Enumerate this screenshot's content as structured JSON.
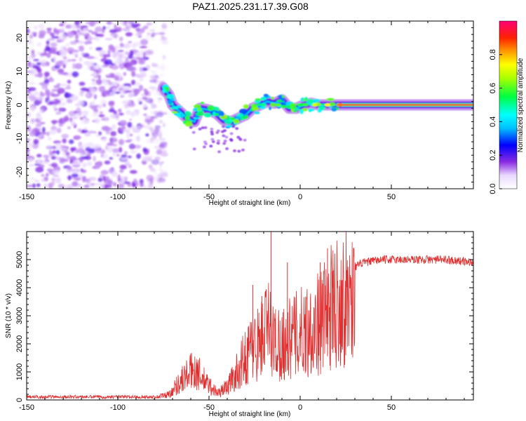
{
  "title": "PAZ1.2025.231.17.39.G08",
  "chart_data": [
    {
      "type": "heatmap",
      "xlabel": "Height of straight line (km)",
      "ylabel": "Frequency (Hz)",
      "xlim": [
        -150,
        95
      ],
      "ylim": [
        -25,
        25
      ],
      "xticks": [
        "-150",
        "-100",
        "-50",
        "0",
        "50"
      ],
      "xtick_values": [
        -150,
        -100,
        -50,
        0,
        50
      ],
      "yticks": [
        "20",
        "10",
        "0",
        "-10",
        "-20"
      ],
      "ytick_values": [
        20,
        10,
        0,
        -10,
        -20
      ],
      "colorbar": {
        "label": "Normalized spectral amplitude",
        "range": [
          0,
          1
        ],
        "ticks": [
          "0.0",
          "0.2",
          "0.4",
          "0.6",
          "0.8"
        ],
        "tick_values": [
          0,
          0.2,
          0.4,
          0.6,
          0.8
        ]
      },
      "noise_region_x": [
        -150,
        -78
      ],
      "noise_amplitude": 0.12,
      "track": [
        {
          "x": -75,
          "f": 5
        },
        {
          "x": -72,
          "f": 3
        },
        {
          "x": -70,
          "f": 0
        },
        {
          "x": -66,
          "f": -2
        },
        {
          "x": -62,
          "f": -4
        },
        {
          "x": -58,
          "f": -5
        },
        {
          "x": -55,
          "f": -1
        },
        {
          "x": -50,
          "f": -1.5
        },
        {
          "x": -46,
          "f": -2.5
        },
        {
          "x": -42,
          "f": -4.5
        },
        {
          "x": -38,
          "f": -5
        },
        {
          "x": -34,
          "f": -4
        },
        {
          "x": -30,
          "f": -3
        },
        {
          "x": -26,
          "f": -1
        },
        {
          "x": -22,
          "f": 0
        },
        {
          "x": -18,
          "f": 1
        },
        {
          "x": -14,
          "f": 0.5
        },
        {
          "x": -10,
          "f": 1.5
        },
        {
          "x": -6,
          "f": -1
        },
        {
          "x": -2,
          "f": -1
        },
        {
          "x": 2,
          "f": 0
        },
        {
          "x": 6,
          "f": 0.5
        },
        {
          "x": 10,
          "f": 0
        },
        {
          "x": 15,
          "f": 0
        },
        {
          "x": 20,
          "f": 0
        },
        {
          "x": 30,
          "f": 0
        },
        {
          "x": 95,
          "f": 0
        }
      ],
      "stable_region_x": [
        20,
        95
      ]
    },
    {
      "type": "line",
      "xlabel": "Height of straight line (km)",
      "ylabel": "SNR (10 * v/v)",
      "xlim": [
        -150,
        95
      ],
      "ylim": [
        0,
        6000
      ],
      "xticks": [
        "-150",
        "-100",
        "-50",
        "0",
        "50"
      ],
      "xtick_values": [
        -150,
        -100,
        -50,
        0,
        50
      ],
      "yticks": [
        "0",
        "1000",
        "2000",
        "3000",
        "4000",
        "5000"
      ],
      "ytick_values": [
        0,
        1000,
        2000,
        3000,
        4000,
        5000
      ],
      "color": "#e03030",
      "envelope": [
        {
          "x": -150,
          "y": 110
        },
        {
          "x": -80,
          "y": 110
        },
        {
          "x": -72,
          "y": 250
        },
        {
          "x": -65,
          "y": 900
        },
        {
          "x": -58,
          "y": 1400
        },
        {
          "x": -52,
          "y": 800
        },
        {
          "x": -45,
          "y": 300
        },
        {
          "x": -40,
          "y": 600
        },
        {
          "x": -35,
          "y": 1200
        },
        {
          "x": -28,
          "y": 2200
        },
        {
          "x": -22,
          "y": 2600
        },
        {
          "x": -18,
          "y": 3300
        },
        {
          "x": -14,
          "y": 2600
        },
        {
          "x": -10,
          "y": 2500
        },
        {
          "x": -6,
          "y": 2700
        },
        {
          "x": -2,
          "y": 2900
        },
        {
          "x": 2,
          "y": 3100
        },
        {
          "x": 6,
          "y": 3200
        },
        {
          "x": 10,
          "y": 3400
        },
        {
          "x": 15,
          "y": 3900
        },
        {
          "x": 20,
          "y": 4400
        },
        {
          "x": 28,
          "y": 4700
        },
        {
          "x": 35,
          "y": 4900
        },
        {
          "x": 45,
          "y": 5000
        },
        {
          "x": 60,
          "y": 5000
        },
        {
          "x": 80,
          "y": 5000
        },
        {
          "x": 95,
          "y": 4900
        }
      ],
      "spikes": [
        {
          "x": -16,
          "y": 6000
        },
        {
          "x": -26,
          "y": 4100
        },
        {
          "x": -7,
          "y": 4900
        },
        {
          "x": 11,
          "y": 4900
        },
        {
          "x": 15,
          "y": 5400
        },
        {
          "x": 18,
          "y": 4700
        },
        {
          "x": -21,
          "y": 3700
        }
      ]
    }
  ]
}
